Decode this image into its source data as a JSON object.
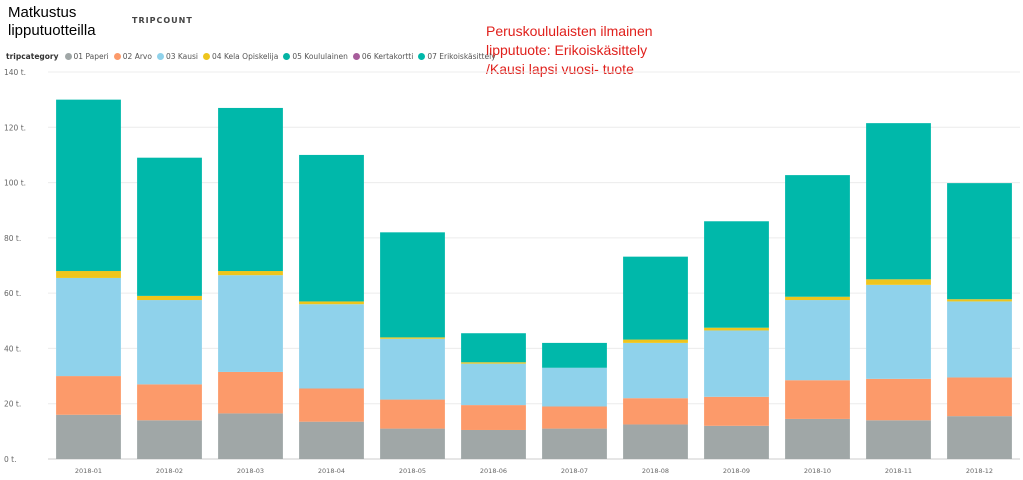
{
  "page": {
    "title": "Matkustus lipputuotteilla",
    "measure": "TRIPCOUNT",
    "annotation": "Peruskoululaisten ilmainen lipputuote: Erikoiskäsittely /Kausi lapsi vuosi- tuote"
  },
  "legend": {
    "title": "tripcategory",
    "items": [
      {
        "label": "01 Paperi",
        "color": "#a0a7a7"
      },
      {
        "label": "02 Arvo",
        "color": "#fc9a6a"
      },
      {
        "label": "03 Kausi",
        "color": "#8fd2eb"
      },
      {
        "label": "04 Kela Opiskelija",
        "color": "#eec51d"
      },
      {
        "label": "05 Koululainen",
        "color": "#04b4a4"
      },
      {
        "label": "06 Kertakortti",
        "color": "#a75d9b"
      },
      {
        "label": "07 Erikoiskäsittely",
        "color": "#00b8aa"
      }
    ]
  },
  "chart_data": {
    "type": "bar",
    "stacked": true,
    "title": "Matkustus lipputuotteilla",
    "ylabel": "TRIPCOUNT",
    "xlabel": "",
    "ylim": [
      0,
      140
    ],
    "yticks": [
      0,
      20,
      40,
      60,
      80,
      100,
      120,
      140
    ],
    "ytick_labels": [
      "0 t.",
      "20 t.",
      "40 t.",
      "60 t.",
      "80 t.",
      "100 t.",
      "120 t.",
      "140 t."
    ],
    "grid": true,
    "legend_position": "top-left",
    "categories": [
      "2018-01",
      "2018-02",
      "2018-03",
      "2018-04",
      "2018-05",
      "2018-06",
      "2018-07",
      "2018-08",
      "2018-09",
      "2018-10",
      "2018-11",
      "2018-12"
    ],
    "series": [
      {
        "name": "01 Paperi",
        "color": "#a0a7a7",
        "values": [
          16,
          14,
          16.5,
          13.5,
          11,
          10.5,
          11,
          12.5,
          12,
          14.5,
          14,
          15.5
        ]
      },
      {
        "name": "02 Arvo",
        "color": "#fc9a6a",
        "values": [
          14,
          13,
          15,
          12,
          10.5,
          9,
          8,
          9.5,
          10.5,
          14,
          15,
          14
        ]
      },
      {
        "name": "03 Kausi",
        "color": "#8fd2eb",
        "values": [
          35.5,
          30.5,
          35,
          30.5,
          22,
          15,
          14,
          20,
          24,
          29,
          34,
          27.5
        ]
      },
      {
        "name": "04 Kela Opiskelija",
        "color": "#eec51d",
        "values": [
          2.5,
          1.5,
          1.5,
          1,
          0.5,
          0.5,
          0,
          1.2,
          1,
          1.2,
          2,
          0.8
        ]
      },
      {
        "name": "05 Koululainen",
        "color": "#04b4a4",
        "values": [
          0,
          0,
          0,
          0,
          0,
          0,
          0,
          0,
          0,
          0,
          0,
          0
        ]
      },
      {
        "name": "06 Kertakortti",
        "color": "#a75d9b",
        "values": [
          0,
          0,
          0,
          0,
          0,
          0,
          0,
          0,
          0,
          0,
          0,
          0
        ]
      },
      {
        "name": "07 Erikoiskäsittely",
        "color": "#00b8aa",
        "values": [
          62,
          50,
          59,
          53,
          38,
          10.5,
          9,
          30,
          38.5,
          44,
          56.5,
          42
        ]
      }
    ]
  }
}
